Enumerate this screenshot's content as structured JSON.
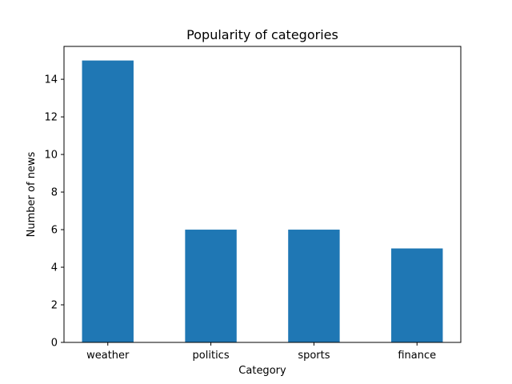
{
  "chart_data": {
    "type": "bar",
    "title": "Popularity of categories",
    "xlabel": "Category",
    "ylabel": "Number of news",
    "categories": [
      "weather",
      "politics",
      "sports",
      "finance"
    ],
    "values": [
      15,
      6,
      6,
      5
    ],
    "ylim": [
      0,
      15.75
    ],
    "yticks": [
      0,
      2,
      4,
      6,
      8,
      10,
      12,
      14
    ],
    "bar_color": "#1f77b4",
    "grid": false,
    "legend": "none"
  }
}
